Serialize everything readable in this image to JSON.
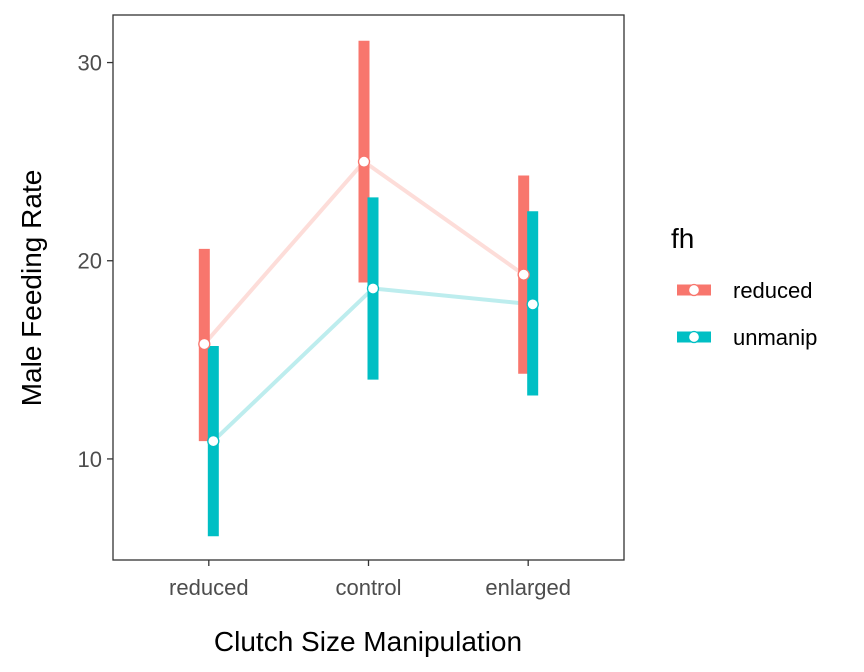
{
  "chart_data": {
    "type": "line",
    "xlabel": "Clutch Size Manipulation",
    "ylabel": "Male Feeding Rate",
    "categories": [
      "reduced",
      "control",
      "enlarged"
    ],
    "ylim": [
      4.9,
      32.4
    ],
    "yticks": [
      10,
      20,
      30
    ],
    "grid": false,
    "legend": {
      "title": "fh",
      "position": "right"
    },
    "series": [
      {
        "name": "reduced",
        "color": "#F8766D",
        "line_color": "#FDDDD9",
        "values": [
          15.8,
          25.0,
          19.3
        ],
        "lower": [
          10.9,
          18.9,
          14.3
        ],
        "upper": [
          20.6,
          31.1,
          24.3
        ]
      },
      {
        "name": "unmanip",
        "color": "#00BFC4",
        "line_color": "#BDEDEE",
        "values": [
          10.9,
          18.6,
          17.8
        ],
        "lower": [
          6.1,
          14.0,
          13.2
        ],
        "upper": [
          15.7,
          23.2,
          22.5
        ]
      }
    ]
  }
}
